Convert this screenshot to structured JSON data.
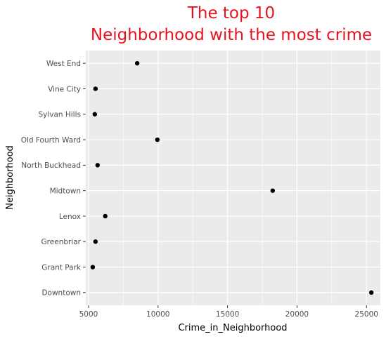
{
  "chart_data": {
    "type": "scatter",
    "title_lines": [
      "The top 10",
      "Neighborhood with the most crime"
    ],
    "xlabel": "Crime_in_Neighborhood",
    "ylabel": "Neighborhood",
    "xlim": [
      4800,
      26000
    ],
    "x_ticks": [
      5000,
      10000,
      15000,
      20000,
      25000
    ],
    "x_tick_labels": [
      "5000",
      "10000",
      "15000",
      "20000",
      "25000"
    ],
    "categories": [
      "West End",
      "Vine City",
      "Sylvan Hills",
      "Old Fourth Ward",
      "North Buckhead",
      "Midtown",
      "Lenox",
      "Greenbriar",
      "Grant Park",
      "Downtown"
    ],
    "values": [
      8500,
      5500,
      5450,
      9950,
      5650,
      18250,
      6200,
      5500,
      5300,
      25350
    ],
    "grid": true,
    "legend": "none",
    "colors": {
      "title": "#e8131f",
      "panel": "#ebebeb",
      "grid": "#ffffff",
      "point": "#000000"
    }
  }
}
